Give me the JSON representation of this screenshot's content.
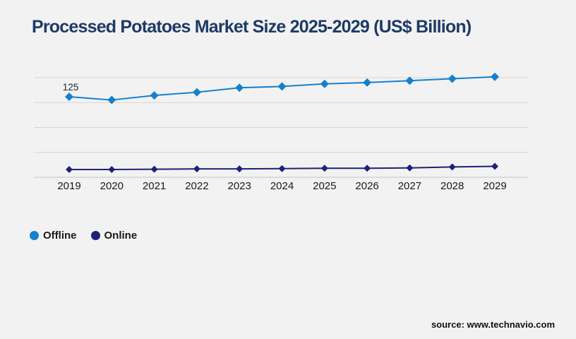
{
  "title": "Processed Potatoes Market Size 2025-2029 (US$ Billion)",
  "footer": {
    "source": "source: www.technavio.com"
  },
  "colors": {
    "background": "#f2f2f2",
    "title": "#1e3a66",
    "grid": "#d6d6d6",
    "axis": "#c6c6c6",
    "text": "#1a1a1a",
    "annotation": "#262626"
  },
  "chart_data": {
    "type": "line",
    "title": "Processed Potatoes Market Size 2025-2029 (US$ Billion)",
    "categories": [
      "2019",
      "2020",
      "2021",
      "2022",
      "2023",
      "2024",
      "2025",
      "2026",
      "2027",
      "2028",
      "2029"
    ],
    "series": [
      {
        "name": "Offline",
        "color": "#1680cc",
        "marker": "diamond",
        "values": [
          125,
          120,
          127,
          132,
          139,
          141,
          145,
          147,
          150,
          153,
          156
        ]
      },
      {
        "name": "Online",
        "color": "#20207a",
        "marker": "diamond",
        "values": [
          12,
          12,
          12.5,
          13,
          13,
          13.5,
          14,
          14,
          14.5,
          16,
          17
        ]
      }
    ],
    "annotations": [
      {
        "series": "Offline",
        "category": "2019",
        "text": "125"
      }
    ],
    "xlabel": "",
    "ylabel": "",
    "ylim": [
      0,
      160
    ],
    "grid": "horizontal",
    "gridline_count": 5,
    "y_axis_labels_visible": false,
    "legend_position": "bottom-left"
  }
}
